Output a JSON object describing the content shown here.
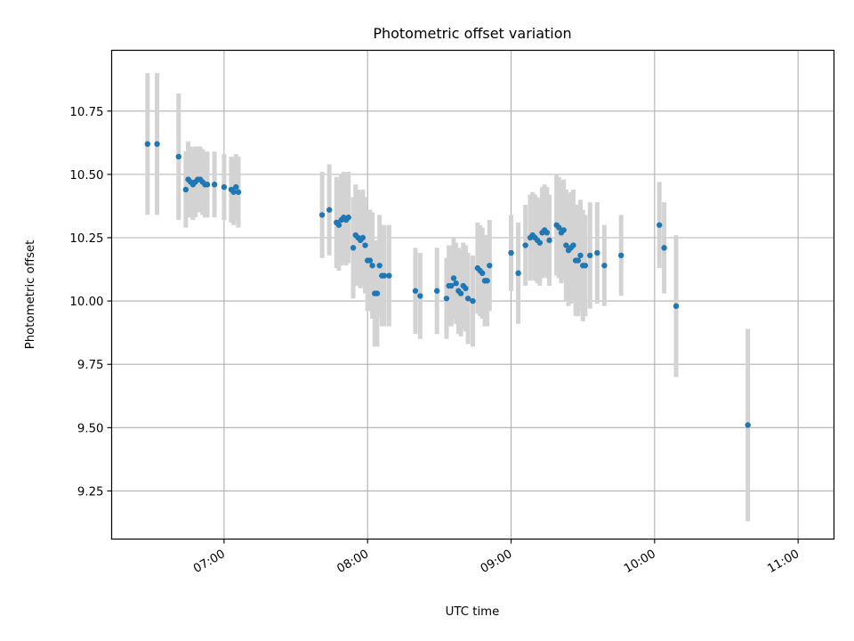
{
  "chart_data": {
    "type": "scatter",
    "title": "Photometric offset variation",
    "xlabel": "UTC time",
    "ylabel": "Photometric offset",
    "xlim": [
      "06:13",
      "11:15"
    ],
    "ylim": [
      9.06,
      10.99
    ],
    "x_ticks": [
      "07:00",
      "08:00",
      "09:00",
      "10:00",
      "11:00"
    ],
    "y_ticks": [
      "9.25",
      "9.50",
      "9.75",
      "10.00",
      "10.25",
      "10.50",
      "10.75"
    ],
    "grid": true,
    "colors": {
      "point": "#1f77b4",
      "errorbar": "#d3d3d3",
      "grid": "#b0b0b0"
    },
    "series": [
      {
        "x": [
          "06:28",
          "06:32",
          "06:41",
          "06:44",
          "06:45",
          "06:46",
          "06:47",
          "06:48",
          "06:49",
          "06:50",
          "06:51",
          "06:52",
          "06:53",
          "06:56",
          "07:00",
          "07:03",
          "07:04",
          "07:05",
          "07:06",
          "07:41",
          "07:44",
          "07:47",
          "07:48",
          "07:49",
          "07:50",
          "07:51",
          "07:52",
          "07:54",
          "07:55",
          "07:56",
          "07:57",
          "07:58",
          "07:59",
          "08:00",
          "08:01",
          "08:02",
          "08:03",
          "08:04",
          "08:05",
          "08:06",
          "08:07",
          "08:09",
          "08:20",
          "08:22",
          "08:29",
          "08:33",
          "08:34",
          "08:35",
          "08:36",
          "08:37",
          "08:38",
          "08:39",
          "08:40",
          "08:41",
          "08:42",
          "08:44",
          "08:46",
          "08:47",
          "08:48",
          "08:49",
          "08:50",
          "08:51",
          "09:00",
          "09:03",
          "09:06",
          "09:08",
          "09:09",
          "09:10",
          "09:11",
          "09:12",
          "09:13",
          "09:14",
          "09:15",
          "09:16",
          "09:19",
          "09:20",
          "09:21",
          "09:22",
          "09:23",
          "09:24",
          "09:25",
          "09:26",
          "09:27",
          "09:28",
          "09:29",
          "09:30",
          "09:31",
          "09:33",
          "09:36",
          "09:39",
          "09:46",
          "10:02",
          "10:04",
          "10:09",
          "10:39"
        ],
        "y": [
          10.62,
          10.62,
          10.57,
          10.44,
          10.48,
          10.47,
          10.46,
          10.47,
          10.48,
          10.48,
          10.47,
          10.46,
          10.46,
          10.46,
          10.45,
          10.44,
          10.43,
          10.45,
          10.43,
          10.34,
          10.36,
          10.31,
          10.3,
          10.32,
          10.33,
          10.32,
          10.33,
          10.21,
          10.26,
          10.25,
          10.24,
          10.25,
          10.22,
          10.16,
          10.16,
          10.14,
          10.03,
          10.03,
          10.14,
          10.1,
          10.1,
          10.1,
          10.04,
          10.02,
          10.04,
          10.01,
          10.06,
          10.06,
          10.09,
          10.07,
          10.04,
          10.03,
          10.06,
          10.05,
          10.01,
          10.0,
          10.13,
          10.12,
          10.11,
          10.08,
          10.08,
          10.14,
          10.19,
          10.11,
          10.22,
          10.25,
          10.26,
          10.25,
          10.24,
          10.23,
          10.27,
          10.28,
          10.27,
          10.24,
          10.3,
          10.29,
          10.27,
          10.28,
          10.22,
          10.2,
          10.21,
          10.22,
          10.16,
          10.16,
          10.18,
          10.14,
          10.14,
          10.18,
          10.19,
          10.14,
          10.18,
          10.3,
          10.21,
          9.98,
          9.51
        ],
        "yerr": [
          0.28,
          0.28,
          0.25,
          0.15,
          0.15,
          0.14,
          0.14,
          0.14,
          0.13,
          0.13,
          0.13,
          0.13,
          0.13,
          0.13,
          0.13,
          0.13,
          0.13,
          0.13,
          0.14,
          0.17,
          0.18,
          0.18,
          0.18,
          0.18,
          0.18,
          0.18,
          0.18,
          0.2,
          0.2,
          0.19,
          0.19,
          0.19,
          0.19,
          0.2,
          0.2,
          0.21,
          0.21,
          0.21,
          0.2,
          0.2,
          0.2,
          0.2,
          0.17,
          0.17,
          0.17,
          0.16,
          0.16,
          0.16,
          0.16,
          0.16,
          0.17,
          0.17,
          0.17,
          0.17,
          0.18,
          0.18,
          0.18,
          0.18,
          0.18,
          0.18,
          0.18,
          0.18,
          0.15,
          0.2,
          0.16,
          0.17,
          0.17,
          0.17,
          0.17,
          0.17,
          0.18,
          0.18,
          0.18,
          0.18,
          0.2,
          0.2,
          0.2,
          0.2,
          0.22,
          0.22,
          0.22,
          0.22,
          0.22,
          0.22,
          0.22,
          0.22,
          0.2,
          0.21,
          0.2,
          0.16,
          0.16,
          0.17,
          0.18,
          0.28,
          0.38
        ]
      }
    ]
  }
}
